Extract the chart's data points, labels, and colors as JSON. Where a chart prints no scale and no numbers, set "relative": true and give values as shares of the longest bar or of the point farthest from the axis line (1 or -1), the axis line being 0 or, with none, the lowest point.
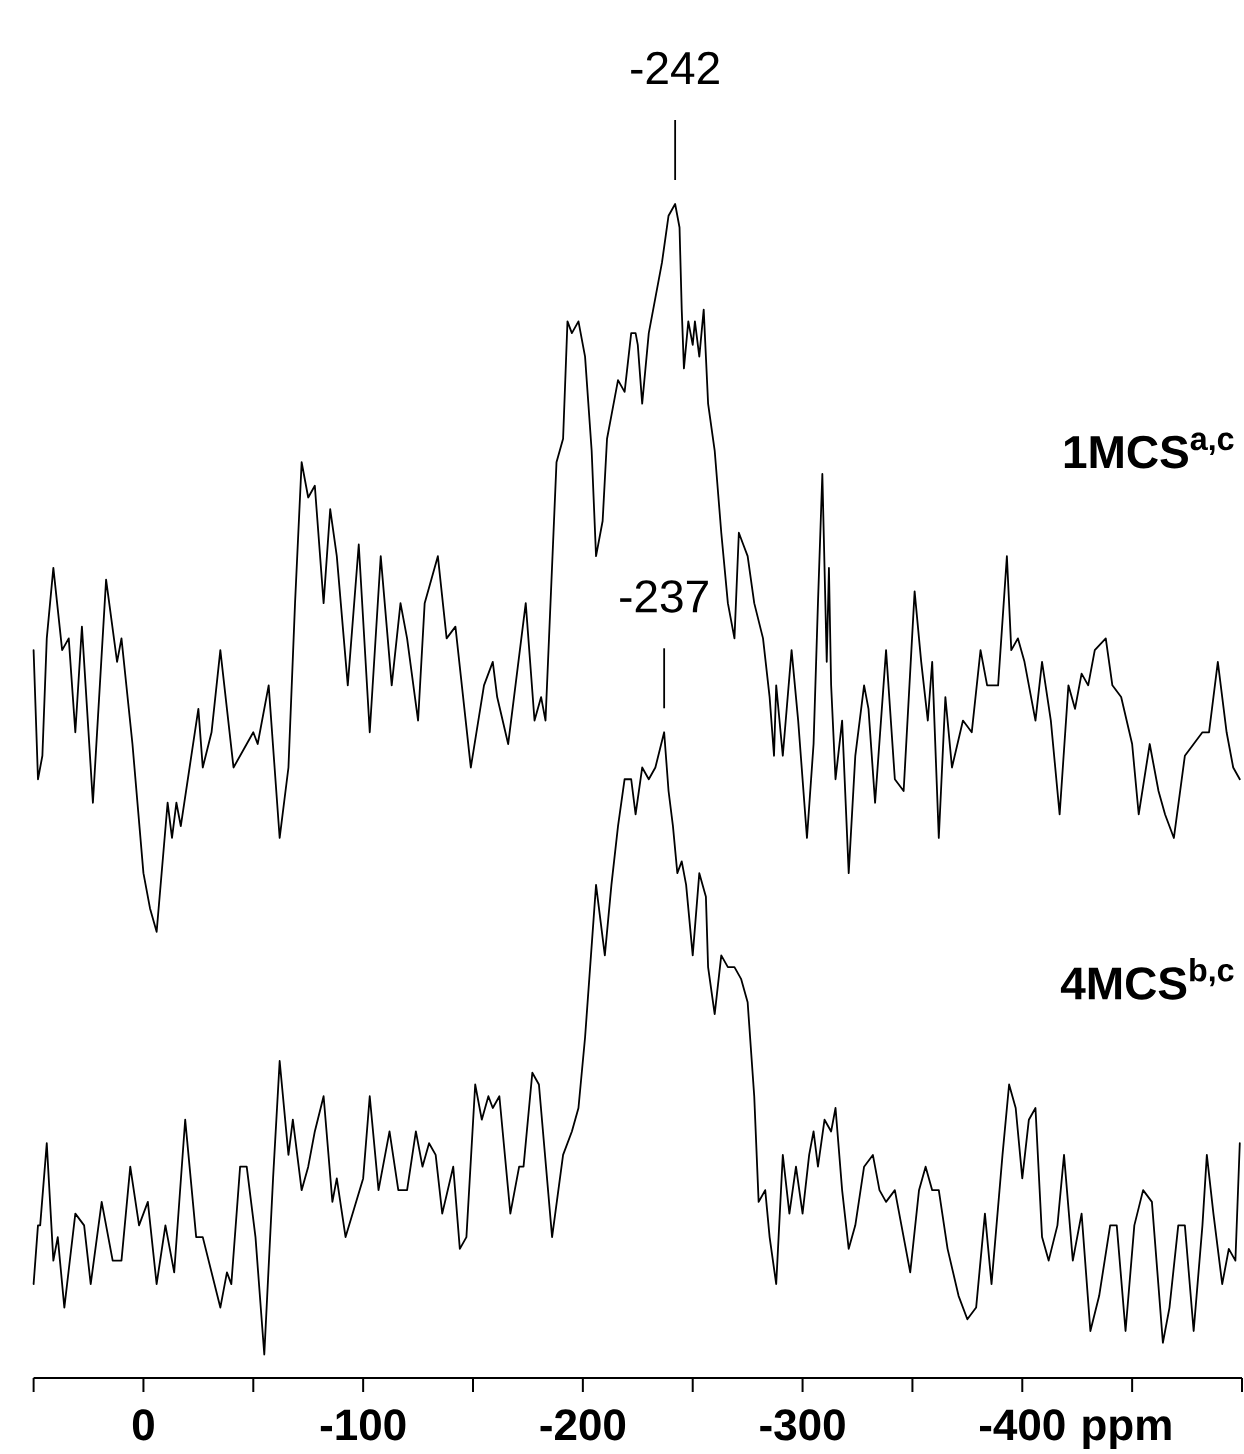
{
  "chart_data": {
    "type": "line",
    "relative": true,
    "xlim": [
      50,
      -500
    ],
    "xticks": [
      {
        "value": 50,
        "label": null
      },
      0,
      {
        "value": -50,
        "label": null
      },
      -100,
      {
        "value": -150,
        "label": null
      },
      -200,
      {
        "value": -250,
        "label": null
      },
      -300,
      {
        "value": -350,
        "label": null
      },
      -400,
      {
        "value": -450,
        "label": null
      },
      {
        "value": -500,
        "label": null
      }
    ],
    "xlabel": "ppm",
    "series": [
      {
        "name": "1MCS$^{a,c}$",
        "color": "#000000",
        "x": [
          50,
          48,
          46,
          44,
          41,
          37,
          34,
          31,
          28,
          23,
          17,
          12,
          10,
          5,
          0,
          -3,
          -6,
          -11,
          -13,
          -15,
          -17,
          -21,
          -25,
          -27,
          -31,
          -35,
          -41,
          -50,
          -52,
          -57,
          -62,
          -66,
          -69,
          -72,
          -75,
          -78,
          -82,
          -85,
          -88,
          -93,
          -98,
          -103,
          -108,
          -113,
          -117,
          -120,
          -125,
          -128,
          -134,
          -138,
          -142,
          -149,
          -155,
          -159,
          -161,
          -166,
          -174,
          -178,
          -181,
          -183,
          -188,
          -191,
          -193,
          -195,
          -198,
          -201,
          -204,
          -206,
          -209,
          -211,
          -213,
          -216,
          -219,
          -222,
          -224,
          -225,
          -227,
          -230,
          -233,
          -236,
          -239,
          -242,
          -244,
          -245,
          -246,
          -248,
          -250,
          -251,
          -253,
          -255,
          -257,
          -260,
          -263,
          -266,
          -269,
          -271,
          -273,
          -275,
          -278,
          -282,
          -285,
          -287,
          -288,
          -291,
          -295,
          -298,
          -302,
          -305,
          -307,
          -309,
          -311,
          -312,
          -313,
          -315,
          -318,
          -321,
          -324,
          -328,
          -330,
          -333,
          -338,
          -342,
          -346,
          -351,
          -354,
          -357,
          -359,
          -362,
          -365,
          -368,
          -373,
          -377,
          -381,
          -384,
          -386,
          -389,
          -393,
          -395,
          -398,
          -401,
          -406,
          -409,
          -413,
          -417,
          -421,
          -424,
          -427,
          -430,
          -433,
          -438,
          -441,
          -445,
          -450,
          -453,
          -458,
          -462,
          -465,
          -469,
          -474,
          -478,
          -482,
          -485,
          -489,
          -493,
          -496,
          -499
        ],
        "values": [
          0.62,
          0.51,
          0.53,
          0.63,
          0.69,
          0.62,
          0.63,
          0.55,
          0.64,
          0.49,
          0.68,
          0.61,
          0.63,
          0.54,
          0.43,
          0.4,
          0.38,
          0.49,
          0.46,
          0.49,
          0.47,
          0.52,
          0.57,
          0.52,
          0.55,
          0.62,
          0.52,
          0.55,
          0.54,
          0.59,
          0.46,
          0.52,
          0.66,
          0.78,
          0.75,
          0.76,
          0.66,
          0.74,
          0.7,
          0.59,
          0.71,
          0.55,
          0.7,
          0.59,
          0.66,
          0.63,
          0.56,
          0.66,
          0.7,
          0.63,
          0.64,
          0.52,
          0.59,
          0.61,
          0.58,
          0.54,
          0.66,
          0.56,
          0.58,
          0.56,
          0.78,
          0.8,
          0.9,
          0.89,
          0.9,
          0.87,
          0.79,
          0.7,
          0.73,
          0.8,
          0.82,
          0.85,
          0.84,
          0.89,
          0.89,
          0.88,
          0.83,
          0.89,
          0.92,
          0.95,
          0.99,
          1,
          0.98,
          0.91,
          0.86,
          0.9,
          0.88,
          0.9,
          0.87,
          0.91,
          0.83,
          0.79,
          0.72,
          0.66,
          0.63,
          0.72,
          0.71,
          0.7,
          0.66,
          0.63,
          0.58,
          0.53,
          0.59,
          0.53,
          0.62,
          0.56,
          0.46,
          0.54,
          0.66,
          0.77,
          0.61,
          0.69,
          0.59,
          0.51,
          0.56,
          0.43,
          0.53,
          0.59,
          0.57,
          0.49,
          0.62,
          0.51,
          0.5,
          0.67,
          0.61,
          0.56,
          0.61,
          0.46,
          0.58,
          0.52,
          0.56,
          0.55,
          0.62,
          0.59,
          0.59,
          0.59,
          0.7,
          0.62,
          0.63,
          0.61,
          0.56,
          0.61,
          0.56,
          0.48,
          0.59,
          0.57,
          0.6,
          0.59,
          0.62,
          0.63,
          0.59,
          0.58,
          0.54,
          0.48,
          0.54,
          0.5,
          0.48,
          0.46,
          0.53,
          0.54,
          0.55,
          0.55,
          0.61,
          0.55,
          0.52,
          0.51
        ]
      },
      {
        "name": "4MCS$^{b,c}$",
        "color": "#000000",
        "x": [
          50,
          48,
          47,
          44,
          41,
          39,
          36,
          31,
          27,
          24,
          19,
          14,
          10,
          6,
          2,
          -2,
          -6,
          -10,
          -14,
          -19,
          -24,
          -27,
          -35,
          -38,
          -40,
          -44,
          -47,
          -51,
          -55,
          -59,
          -62,
          -66,
          -68,
          -72,
          -75,
          -78,
          -82,
          -86,
          -88,
          -92,
          -100,
          -103,
          -107,
          -112,
          -116,
          -120,
          -124,
          -127,
          -130,
          -133,
          -136,
          -141,
          -144,
          -147,
          -151,
          -154,
          -157,
          -159,
          -162,
          -167,
          -171,
          -173,
          -177,
          -180,
          -186,
          -191,
          -195,
          -198,
          -201,
          -206,
          -210,
          -213,
          -216,
          -219,
          -222,
          -224,
          -227,
          -230,
          -233,
          -237,
          -239,
          -241,
          -243,
          -245,
          -247,
          -250,
          -253,
          -256,
          -257,
          -260,
          -263,
          -266,
          -269,
          -272,
          -275,
          -278,
          -280,
          -283,
          -285,
          -288,
          -291,
          -294,
          -297,
          -300,
          -303,
          -305,
          -307,
          -310,
          -313,
          -315,
          -318,
          -321,
          -324,
          -328,
          -332,
          -335,
          -338,
          -342,
          -345,
          -349,
          -353,
          -356,
          -359,
          -362,
          -366,
          -371,
          -375,
          -379,
          -383,
          -386,
          -391,
          -394,
          -397,
          -400,
          -403,
          -406,
          -409,
          -412,
          -416,
          -419,
          -423,
          -427,
          -431,
          -435,
          -440,
          -443,
          -447,
          -451,
          -455,
          -459,
          -464,
          -467,
          -471,
          -474,
          -478,
          -482,
          -484,
          -487,
          -491,
          -494,
          -497,
          -499
        ],
        "values": [
          0.08,
          0.13,
          0.13,
          0.2,
          0.1,
          0.12,
          0.06,
          0.14,
          0.13,
          0.08,
          0.15,
          0.1,
          0.1,
          0.18,
          0.13,
          0.15,
          0.08,
          0.13,
          0.09,
          0.22,
          0.12,
          0.12,
          0.06,
          0.09,
          0.08,
          0.18,
          0.18,
          0.12,
          0.02,
          0.17,
          0.27,
          0.19,
          0.22,
          0.16,
          0.18,
          0.21,
          0.24,
          0.15,
          0.17,
          0.12,
          0.17,
          0.24,
          0.16,
          0.21,
          0.16,
          0.16,
          0.21,
          0.18,
          0.2,
          0.19,
          0.14,
          0.18,
          0.11,
          0.12,
          0.25,
          0.22,
          0.24,
          0.23,
          0.24,
          0.14,
          0.18,
          0.18,
          0.26,
          0.25,
          0.12,
          0.19,
          0.21,
          0.23,
          0.29,
          0.42,
          0.36,
          0.42,
          0.47,
          0.51,
          0.51,
          0.48,
          0.52,
          0.51,
          0.52,
          0.55,
          0.5,
          0.47,
          0.43,
          0.44,
          0.42,
          0.36,
          0.43,
          0.41,
          0.35,
          0.31,
          0.36,
          0.35,
          0.35,
          0.34,
          0.32,
          0.24,
          0.15,
          0.16,
          0.12,
          0.08,
          0.19,
          0.14,
          0.18,
          0.14,
          0.19,
          0.21,
          0.18,
          0.22,
          0.21,
          0.23,
          0.16,
          0.11,
          0.13,
          0.18,
          0.19,
          0.16,
          0.15,
          0.16,
          0.13,
          0.09,
          0.16,
          0.18,
          0.16,
          0.16,
          0.11,
          0.07,
          0.05,
          0.06,
          0.14,
          0.08,
          0.19,
          0.25,
          0.23,
          0.17,
          0.22,
          0.23,
          0.12,
          0.1,
          0.13,
          0.19,
          0.1,
          0.14,
          0.04,
          0.07,
          0.13,
          0.13,
          0.04,
          0.13,
          0.16,
          0.15,
          0.03,
          0.06,
          0.13,
          0.13,
          0.04,
          0.13,
          0.19,
          0.14,
          0.08,
          0.11,
          0.1,
          0.2
        ]
      }
    ],
    "annotations": [
      {
        "text": "-242",
        "x": -242,
        "y": 1
      },
      {
        "text": "-237",
        "x": -237,
        "y": 0.55
      }
    ]
  }
}
